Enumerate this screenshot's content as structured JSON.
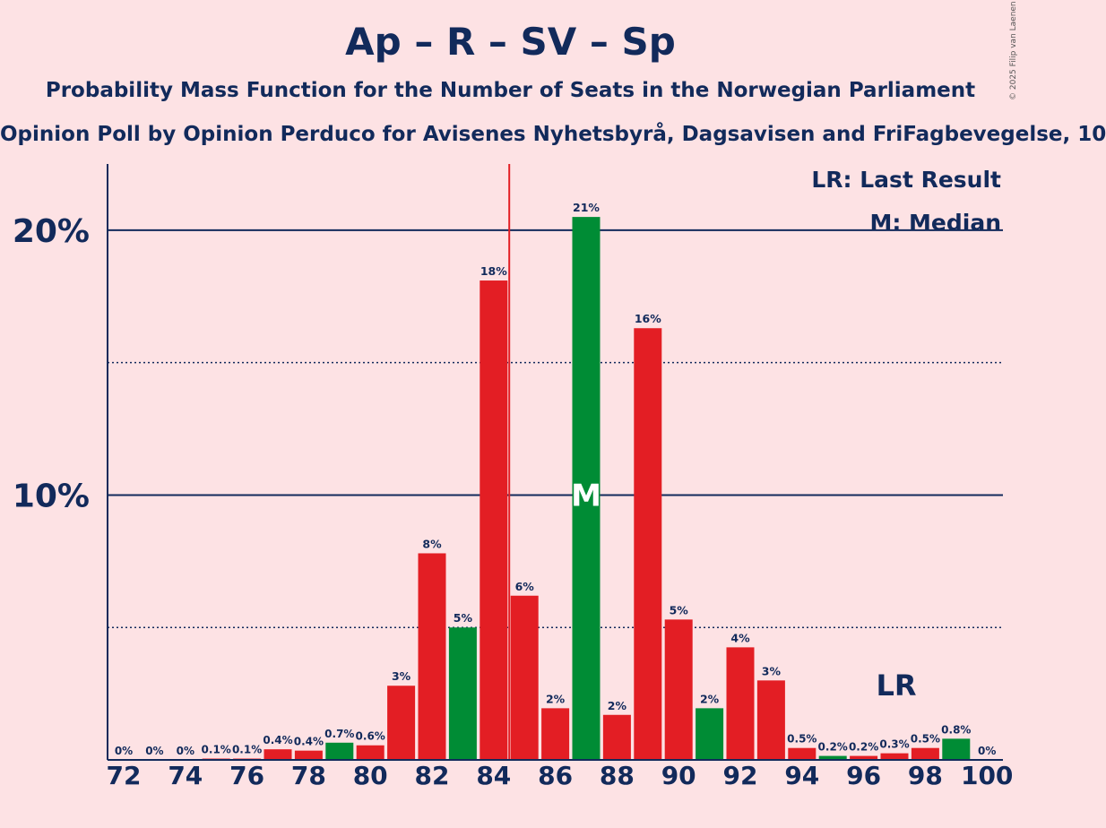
{
  "chart_data": {
    "type": "bar",
    "title": "Ap – R – SV – Sp",
    "subtitle": "Probability Mass Function for the Number of Seats in the Norwegian Parliament",
    "subtitle2": "Opinion Poll by Opinion Perduco for Avisenes Nyhetsbyrå, Dagsavisen and FriFagbevegelse, 10",
    "credit": "© 2025 Filip van Laenen",
    "legend": {
      "last_result": "LR: Last Result",
      "median": "M: Median"
    },
    "median_marker": "M",
    "last_result_marker": "LR",
    "last_result_seat": 97,
    "median_seat": 87,
    "majority_line_seat": 85,
    "ylim": [
      0,
      22.5
    ],
    "yticks": [
      {
        "value": 10,
        "label": "10%"
      },
      {
        "value": 20,
        "label": "20%"
      }
    ],
    "xticks": [
      72,
      74,
      76,
      78,
      80,
      82,
      84,
      86,
      88,
      90,
      92,
      94,
      96,
      98,
      100
    ],
    "bars": [
      {
        "seat": 72,
        "value": 0,
        "label": "0%",
        "color": "red"
      },
      {
        "seat": 73,
        "value": 0,
        "label": "0%",
        "color": "red"
      },
      {
        "seat": 74,
        "value": 0,
        "label": "0%",
        "color": "red"
      },
      {
        "seat": 75,
        "value": 0.05,
        "label": "0.1%",
        "color": "red"
      },
      {
        "seat": 76,
        "value": 0.05,
        "label": "0.1%",
        "color": "red"
      },
      {
        "seat": 77,
        "value": 0.4,
        "label": "0.4%",
        "color": "red"
      },
      {
        "seat": 78,
        "value": 0.35,
        "label": "0.4%",
        "color": "red"
      },
      {
        "seat": 79,
        "value": 0.65,
        "label": "0.7%",
        "color": "green"
      },
      {
        "seat": 80,
        "value": 0.55,
        "label": "0.6%",
        "color": "red"
      },
      {
        "seat": 81,
        "value": 2.8,
        "label": "3%",
        "color": "red"
      },
      {
        "seat": 82,
        "value": 7.8,
        "label": "8%",
        "color": "red"
      },
      {
        "seat": 83,
        "value": 5.0,
        "label": "5%",
        "color": "green"
      },
      {
        "seat": 84,
        "value": 18.1,
        "label": "18%",
        "color": "red"
      },
      {
        "seat": 85,
        "value": 6.2,
        "label": "6%",
        "color": "red"
      },
      {
        "seat": 86,
        "value": 1.95,
        "label": "2%",
        "color": "red"
      },
      {
        "seat": 87,
        "value": 20.5,
        "label": "21%",
        "color": "green"
      },
      {
        "seat": 88,
        "value": 1.7,
        "label": "2%",
        "color": "red"
      },
      {
        "seat": 89,
        "value": 16.3,
        "label": "16%",
        "color": "red"
      },
      {
        "seat": 90,
        "value": 5.3,
        "label": "5%",
        "color": "red"
      },
      {
        "seat": 91,
        "value": 1.95,
        "label": "2%",
        "color": "green"
      },
      {
        "seat": 92,
        "value": 4.25,
        "label": "4%",
        "color": "red"
      },
      {
        "seat": 93,
        "value": 3.0,
        "label": "3%",
        "color": "red"
      },
      {
        "seat": 94,
        "value": 0.45,
        "label": "0.5%",
        "color": "red"
      },
      {
        "seat": 95,
        "value": 0.15,
        "label": "0.2%",
        "color": "green"
      },
      {
        "seat": 96,
        "value": 0.15,
        "label": "0.2%",
        "color": "red"
      },
      {
        "seat": 97,
        "value": 0.25,
        "label": "0.3%",
        "color": "red"
      },
      {
        "seat": 98,
        "value": 0.45,
        "label": "0.5%",
        "color": "red"
      },
      {
        "seat": 99,
        "value": 0.8,
        "label": "0.8%",
        "color": "green"
      },
      {
        "seat": 100,
        "value": 0,
        "label": "0%",
        "color": "green"
      }
    ],
    "colors": {
      "red": "#e31e24",
      "green": "#008c35",
      "axis": "#122a5b",
      "majority": "#e31e24",
      "background": "#fde2e4"
    }
  }
}
